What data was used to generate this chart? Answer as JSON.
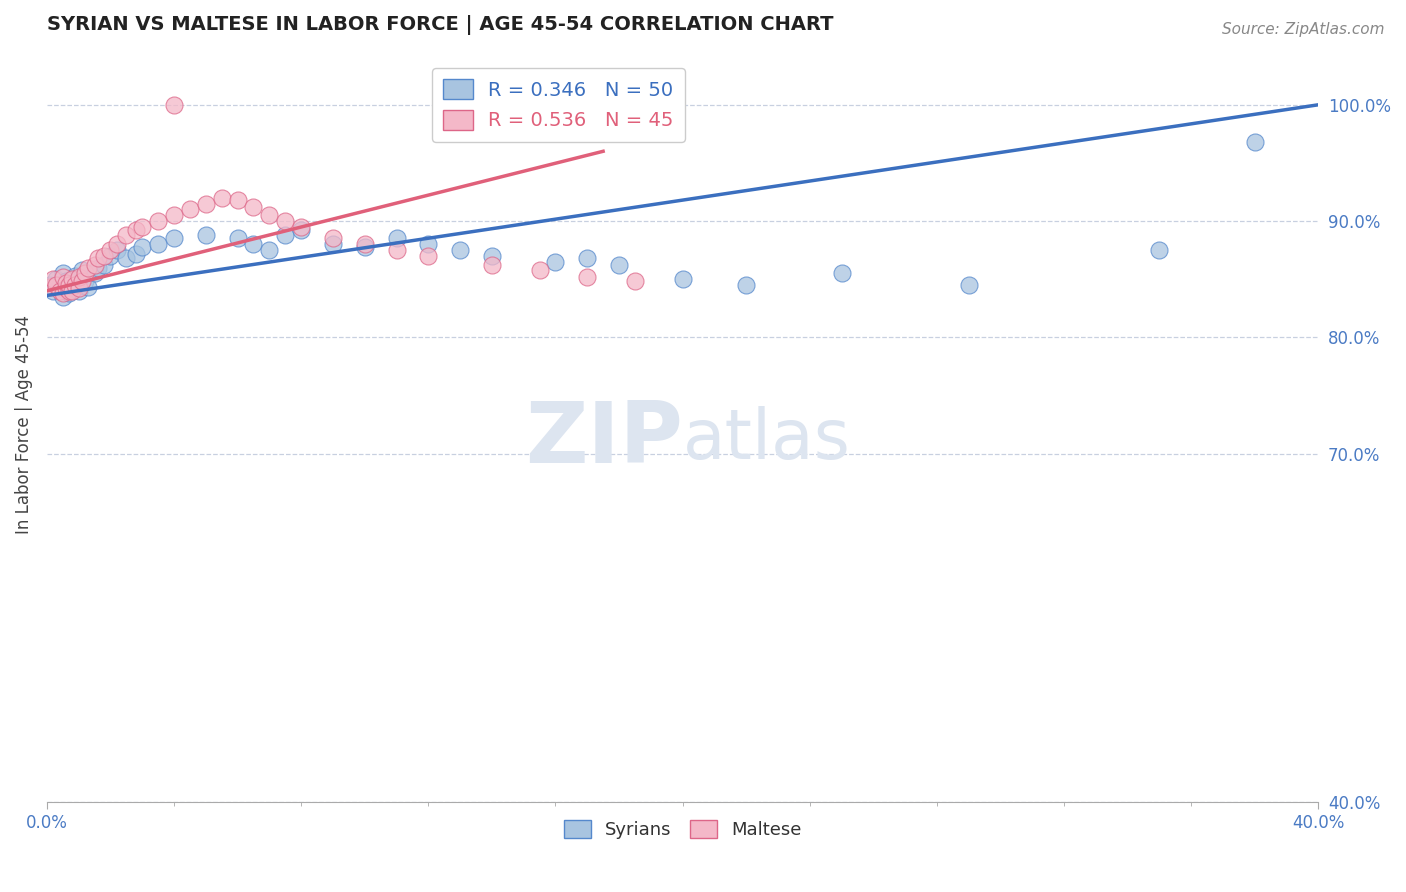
{
  "title": "SYRIAN VS MALTESE IN LABOR FORCE | AGE 45-54 CORRELATION CHART",
  "source_text": "Source: ZipAtlas.com",
  "ylabel": "In Labor Force | Age 45-54",
  "xlim": [
    0.0,
    0.4
  ],
  "ylim": [
    0.4,
    1.05
  ],
  "ytick_positions": [
    0.4,
    0.7,
    0.8,
    0.9,
    1.0
  ],
  "ytick_labels": [
    "40.0%",
    "70.0%",
    "80.0%",
    "90.0%",
    "100.0%"
  ],
  "xtick_vals": [
    0.0,
    0.4
  ],
  "xtick_labels": [
    "0.0%",
    "40.0%"
  ],
  "blue_R": 0.346,
  "blue_N": 50,
  "pink_R": 0.536,
  "pink_N": 45,
  "blue_color": "#A8C4E0",
  "pink_color": "#F4B8C8",
  "blue_edge_color": "#5588CC",
  "pink_edge_color": "#DD6688",
  "blue_line_color": "#3B6FBF",
  "pink_line_color": "#E0607A",
  "watermark_color": "#DDE5F0",
  "background_color": "#FFFFFF",
  "grid_color": "#C8D0E0",
  "blue_scatter_x": [
    0.001,
    0.002,
    0.003,
    0.004,
    0.005,
    0.005,
    0.006,
    0.006,
    0.007,
    0.007,
    0.008,
    0.008,
    0.009,
    0.009,
    0.01,
    0.01,
    0.011,
    0.012,
    0.013,
    0.015,
    0.016,
    0.018,
    0.02,
    0.022,
    0.025,
    0.028,
    0.03,
    0.035,
    0.04,
    0.05,
    0.06,
    0.065,
    0.07,
    0.075,
    0.08,
    0.09,
    0.1,
    0.11,
    0.12,
    0.13,
    0.14,
    0.16,
    0.17,
    0.18,
    0.2,
    0.22,
    0.25,
    0.29,
    0.35,
    0.38
  ],
  "blue_scatter_y": [
    0.845,
    0.84,
    0.85,
    0.845,
    0.835,
    0.855,
    0.84,
    0.848,
    0.843,
    0.838,
    0.85,
    0.842,
    0.847,
    0.853,
    0.84,
    0.844,
    0.858,
    0.848,
    0.843,
    0.855,
    0.86,
    0.862,
    0.87,
    0.875,
    0.868,
    0.872,
    0.878,
    0.88,
    0.885,
    0.888,
    0.885,
    0.88,
    0.875,
    0.888,
    0.892,
    0.88,
    0.878,
    0.885,
    0.88,
    0.875,
    0.87,
    0.865,
    0.868,
    0.862,
    0.85,
    0.845,
    0.855,
    0.845,
    0.875,
    0.968
  ],
  "pink_scatter_x": [
    0.001,
    0.002,
    0.003,
    0.004,
    0.005,
    0.005,
    0.006,
    0.006,
    0.007,
    0.007,
    0.008,
    0.008,
    0.009,
    0.01,
    0.01,
    0.011,
    0.012,
    0.013,
    0.015,
    0.016,
    0.018,
    0.02,
    0.022,
    0.025,
    0.028,
    0.03,
    0.035,
    0.04,
    0.045,
    0.05,
    0.055,
    0.06,
    0.065,
    0.07,
    0.075,
    0.08,
    0.09,
    0.1,
    0.11,
    0.12,
    0.14,
    0.155,
    0.17,
    0.185,
    0.04
  ],
  "pink_scatter_y": [
    0.843,
    0.85,
    0.845,
    0.84,
    0.838,
    0.852,
    0.842,
    0.847,
    0.84,
    0.845,
    0.85,
    0.84,
    0.845,
    0.842,
    0.852,
    0.848,
    0.855,
    0.86,
    0.862,
    0.868,
    0.87,
    0.875,
    0.88,
    0.888,
    0.892,
    0.895,
    0.9,
    0.905,
    0.91,
    0.915,
    0.92,
    0.918,
    0.912,
    0.905,
    0.9,
    0.895,
    0.885,
    0.88,
    0.875,
    0.87,
    0.862,
    0.858,
    0.852,
    0.848,
    1.0
  ],
  "blue_line_x0": 0.0,
  "blue_line_y0": 0.836,
  "blue_line_x1": 0.4,
  "blue_line_y1": 1.0,
  "pink_line_x0": 0.0,
  "pink_line_y0": 0.84,
  "pink_line_x1": 0.175,
  "pink_line_y1": 0.96
}
